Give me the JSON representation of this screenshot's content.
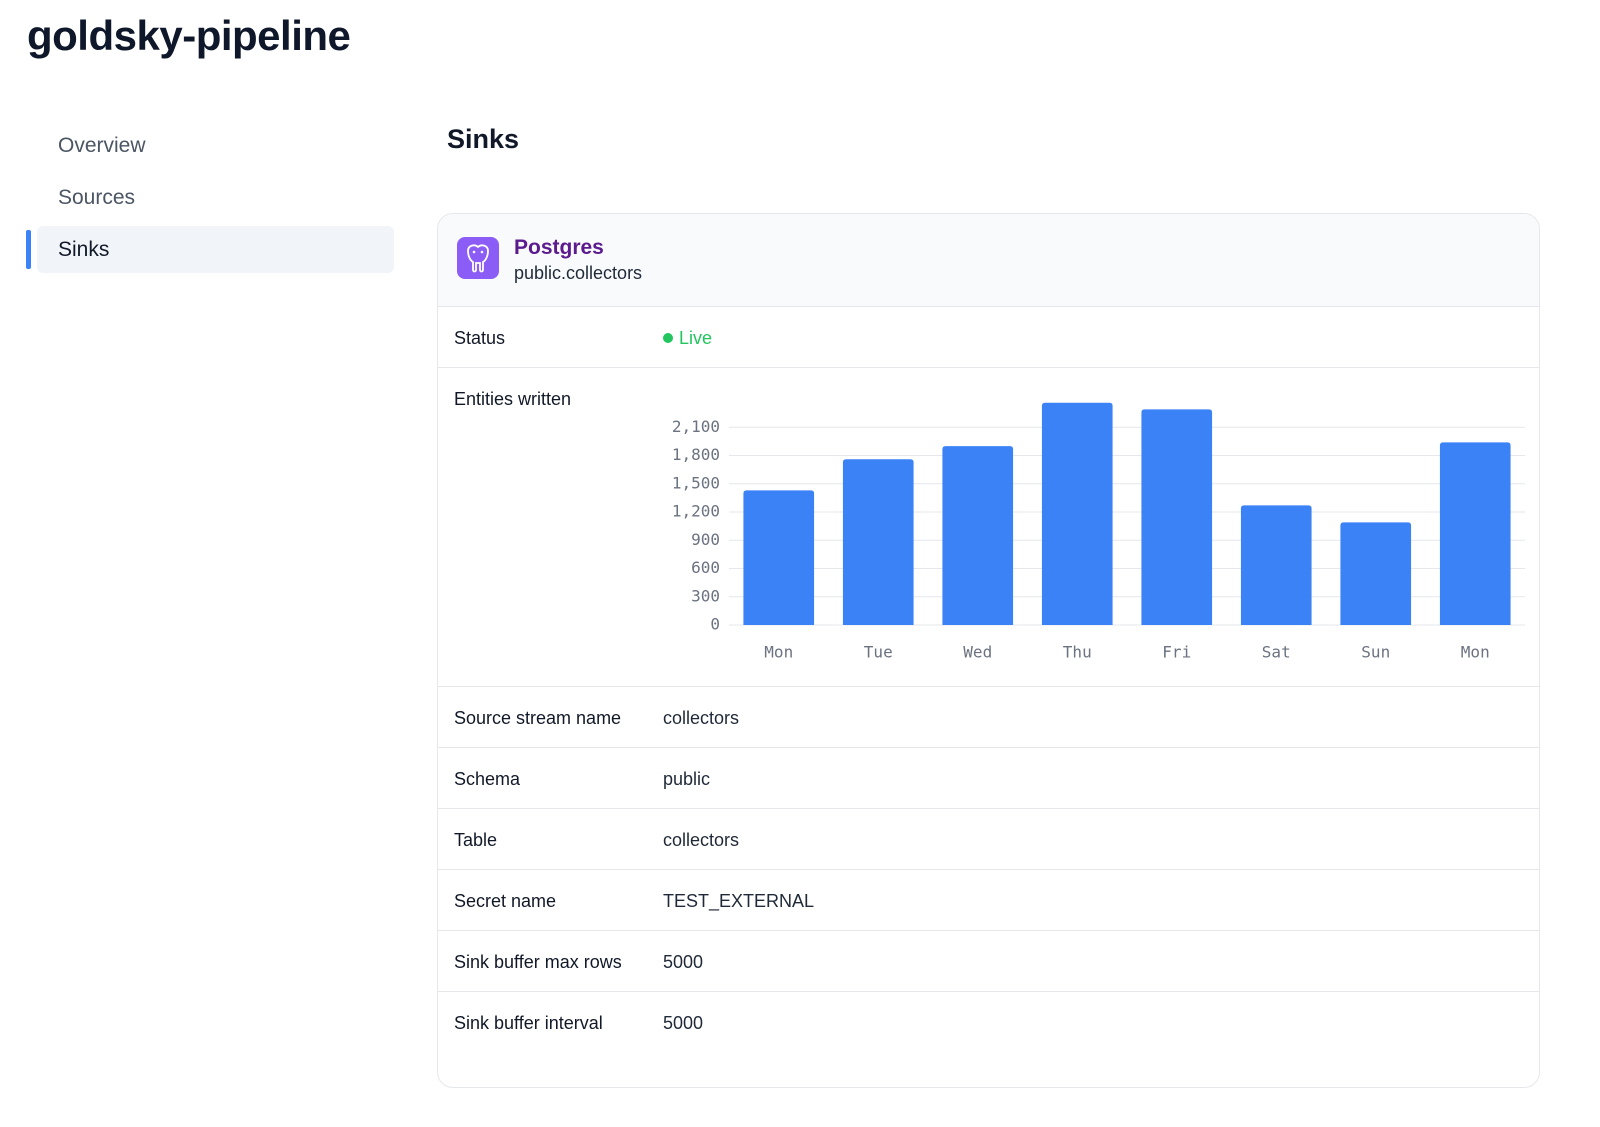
{
  "header": {
    "title": "goldsky-pipeline"
  },
  "nav": {
    "items": [
      "Overview",
      "Sources",
      "Sinks"
    ],
    "active_index": 2
  },
  "section": {
    "title": "Sinks"
  },
  "sink": {
    "name": "Postgres",
    "subtitle": "public.collectors",
    "status_label": "Status",
    "status": "Live",
    "chart_label": "Entities written",
    "rows": [
      {
        "label": "Source stream name",
        "value": "collectors"
      },
      {
        "label": "Schema",
        "value": "public"
      },
      {
        "label": "Table",
        "value": "collectors"
      },
      {
        "label": "Secret name",
        "value": "TEST_EXTERNAL"
      },
      {
        "label": "Sink buffer max rows",
        "value": "5000"
      },
      {
        "label": "Sink buffer interval",
        "value": "5000"
      }
    ]
  },
  "chart_data": {
    "type": "bar",
    "categories": [
      "Mon",
      "Tue",
      "Wed",
      "Thu",
      "Fri",
      "Sat",
      "Sun",
      "Mon"
    ],
    "values": [
      1430,
      1760,
      1900,
      2360,
      2290,
      1270,
      1090,
      1940
    ],
    "color": "#3b82f6",
    "ylim": [
      0,
      2400
    ],
    "yticks": [
      0,
      300,
      600,
      900,
      {
        "value": 1200,
        "label": "1,200"
      },
      {
        "value": 1500,
        "label": "1,500"
      },
      {
        "value": 1800,
        "label": "1,800"
      },
      {
        "value": 2100,
        "label": "2,100"
      }
    ],
    "grid": true
  }
}
